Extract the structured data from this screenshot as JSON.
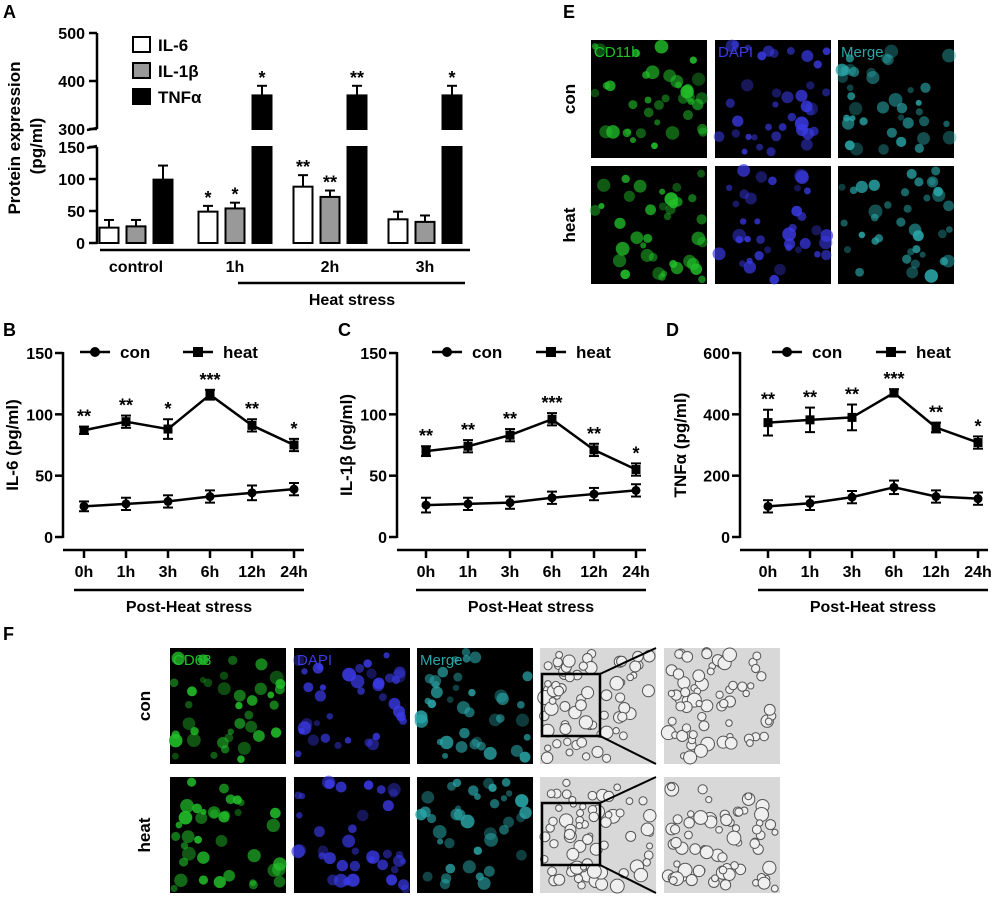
{
  "panel_letters": {
    "a": "A",
    "b": "B",
    "c": "C",
    "d": "D",
    "e": "E",
    "f": "F"
  },
  "chart_data": [
    {
      "panel": "A",
      "type": "bar",
      "ylabel": "Protein expression",
      "ylabel_unit": "(pg/ml)",
      "categories": [
        "control",
        "1h",
        "2h",
        "3h"
      ],
      "group_label": "Heat stress",
      "axis_break": [
        150,
        300
      ],
      "yticks_low": [
        0,
        50,
        100,
        150
      ],
      "yticks_high": [
        300,
        400,
        500
      ],
      "colors": {
        "IL-6": "#ffffff",
        "IL-1β": "#999999",
        "TNFα": "#000000"
      },
      "series": [
        {
          "name": "IL-6",
          "values": [
            24,
            49,
            88,
            37
          ],
          "errors": [
            12,
            9,
            18,
            12
          ],
          "stars": [
            "",
            "*",
            "**",
            ""
          ]
        },
        {
          "name": "IL-1β",
          "values": [
            26,
            54,
            72,
            33
          ],
          "errors": [
            10,
            9,
            10,
            10
          ],
          "stars": [
            "",
            "*",
            "**",
            ""
          ]
        },
        {
          "name": "TNFα",
          "values": [
            99,
            370,
            370,
            370
          ],
          "errors": [
            22,
            20,
            20,
            20
          ],
          "stars": [
            "",
            "*",
            "**",
            "*"
          ]
        }
      ]
    },
    {
      "panel": "B",
      "type": "line",
      "ylabel": "IL-6 (pg/ml)",
      "xlabel": "Post-Heat stress",
      "categories": [
        "0h",
        "1h",
        "3h",
        "6h",
        "12h",
        "24h"
      ],
      "ylim": [
        0,
        150
      ],
      "yticks": [
        0,
        50,
        100,
        150
      ],
      "series": [
        {
          "name": "con",
          "marker": "circle",
          "values": [
            25,
            27,
            29,
            33,
            36,
            39
          ],
          "errors": [
            4,
            5,
            5,
            5,
            6,
            5
          ]
        },
        {
          "name": "heat",
          "marker": "square",
          "values": [
            87,
            94,
            88,
            116,
            91,
            75
          ],
          "errors": [
            3,
            5,
            8,
            4,
            5,
            5
          ],
          "stars": [
            "**",
            "**",
            "*",
            "***",
            "**",
            "*"
          ]
        }
      ]
    },
    {
      "panel": "C",
      "type": "line",
      "ylabel": "IL-1β (pg/ml)",
      "xlabel": "Post-Heat stress",
      "categories": [
        "0h",
        "1h",
        "3h",
        "6h",
        "12h",
        "24h"
      ],
      "ylim": [
        0,
        150
      ],
      "yticks": [
        0,
        50,
        100,
        150
      ],
      "series": [
        {
          "name": "con",
          "marker": "circle",
          "values": [
            26,
            27,
            28,
            32,
            35,
            38
          ],
          "errors": [
            6,
            5,
            5,
            5,
            5,
            5
          ]
        },
        {
          "name": "heat",
          "marker": "square",
          "values": [
            70,
            74,
            83,
            96,
            71,
            55
          ],
          "errors": [
            4,
            5,
            5,
            5,
            5,
            5
          ],
          "stars": [
            "**",
            "**",
            "**",
            "***",
            "**",
            "*"
          ]
        }
      ]
    },
    {
      "panel": "D",
      "type": "line",
      "ylabel": "TNFα (pg/ml)",
      "xlabel": "Post-Heat stress",
      "categories": [
        "0h",
        "1h",
        "3h",
        "6h",
        "12h",
        "24h"
      ],
      "ylim": [
        0,
        600
      ],
      "yticks": [
        0,
        200,
        400,
        600
      ],
      "series": [
        {
          "name": "con",
          "marker": "circle",
          "values": [
            100,
            110,
            130,
            162,
            132,
            125
          ],
          "errors": [
            20,
            22,
            20,
            22,
            20,
            20
          ]
        },
        {
          "name": "heat",
          "marker": "square",
          "values": [
            373,
            382,
            390,
            470,
            357,
            308
          ],
          "errors": [
            42,
            40,
            42,
            12,
            16,
            20
          ],
          "stars": [
            "**",
            "**",
            "**",
            "***",
            "**",
            "*"
          ]
        }
      ]
    }
  ],
  "panel_e": {
    "rows": [
      "con",
      "heat"
    ],
    "columns": [
      "CD11b",
      "DAPI",
      "Merge"
    ],
    "colors": {
      "CD11b": "#22c02a",
      "DAPI": "#3a3ae6",
      "Merge": "#2aa6a8"
    }
  },
  "panel_f": {
    "rows": [
      "con",
      "heat"
    ],
    "columns": [
      "CD68",
      "DAPI",
      "Merge"
    ],
    "colors": {
      "CD68": "#22c02a",
      "DAPI": "#3a3ae6",
      "Merge": "#2aa6a8"
    }
  }
}
